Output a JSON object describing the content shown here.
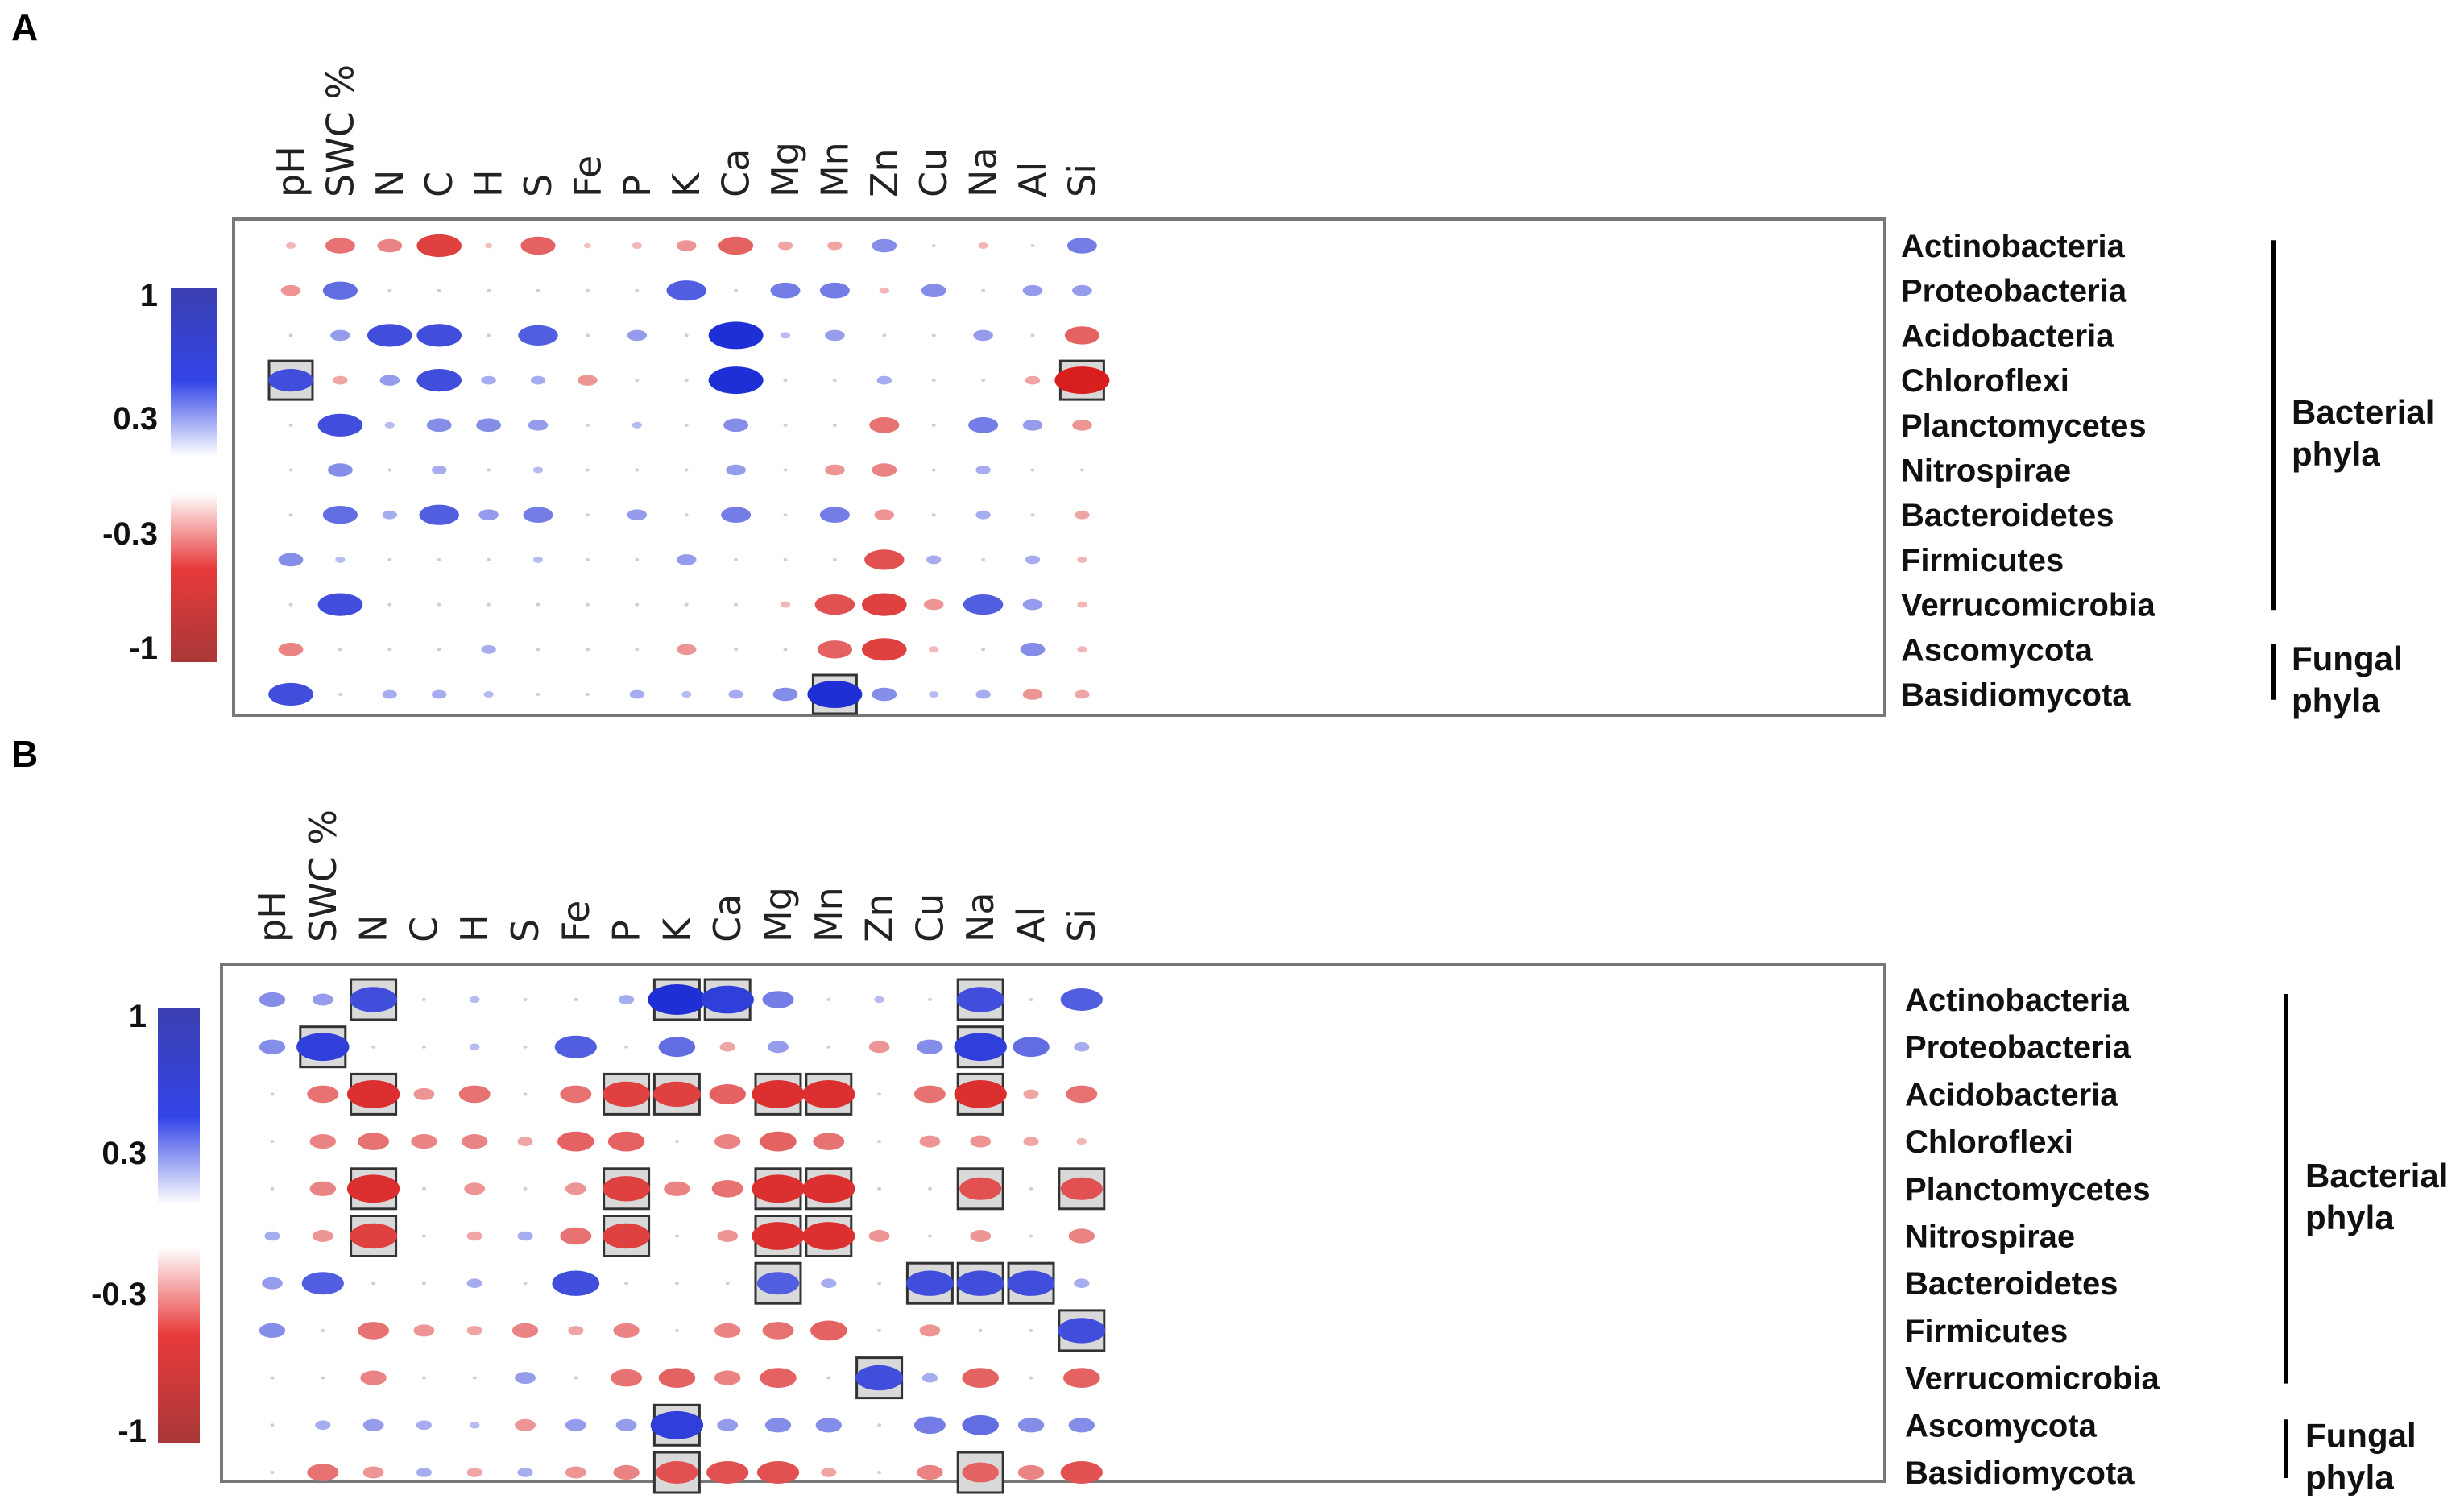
{
  "colors": {
    "positive": "#1f2fd6",
    "negative": "#d91e1e",
    "box_fill": "#d9d9d9",
    "frame": "#777777"
  },
  "chart_data": [
    {
      "type": "heatmap",
      "panel": "A",
      "columns": [
        "pH",
        "SWC %",
        "N",
        "C",
        "H",
        "S",
        "Fe",
        "P",
        "K",
        "Ca",
        "Mg",
        "Mn",
        "Zn",
        "Cu",
        "Na",
        "Al",
        "Si"
      ],
      "rows": [
        "Actinobacteria",
        "Proteobacteria",
        "Acidobacteria",
        "Chloroflexi",
        "Planctomycetes",
        "Nitrospirae",
        "Bacteroidetes",
        "Firmicutes",
        "Verrucomicrobia",
        "Ascomycota",
        "Basidiomycota"
      ],
      "groups": [
        {
          "label": "Bacterial phyla",
          "line1": "Bacterial",
          "line2": "phyla",
          "row_start": 0,
          "row_end": 8
        },
        {
          "label": "Fungal phyla",
          "line1": "Fungal",
          "line2": "phyla",
          "row_start": 9,
          "row_end": 10
        }
      ],
      "colorbar": {
        "ticks": [
          "1",
          "0.3",
          "-0.3",
          "-1"
        ],
        "range": [
          -1,
          1
        ]
      },
      "values": [
        [
          -0.1,
          -0.5,
          -0.4,
          -0.8,
          -0.05,
          -0.6,
          -0.05,
          -0.1,
          -0.3,
          -0.6,
          -0.2,
          -0.2,
          0.4,
          0,
          -0.1,
          0,
          0.5
        ],
        [
          -0.3,
          0.6,
          0,
          0,
          0,
          0,
          0,
          0,
          0.7,
          0,
          0.5,
          0.5,
          -0.1,
          0.4,
          0,
          0.3,
          0.3
        ],
        [
          0,
          0.3,
          0.8,
          0.8,
          0,
          0.7,
          0,
          0.3,
          0,
          1,
          0.1,
          0.3,
          0,
          0,
          0.3,
          0,
          -0.6
        ],
        [
          0.8,
          -0.2,
          0.3,
          0.8,
          0.2,
          0.2,
          -0.3,
          0,
          0,
          1,
          0,
          0,
          0.2,
          0,
          0,
          -0.2,
          -1
        ],
        [
          0,
          0.8,
          0.1,
          0.4,
          0.4,
          0.3,
          0,
          0.1,
          0,
          0.4,
          0,
          0,
          -0.5,
          0,
          0.5,
          0.3,
          -0.3
        ],
        [
          0,
          0.4,
          0,
          0.2,
          0,
          0.1,
          0,
          0,
          0,
          0.3,
          0,
          -0.3,
          -0.4,
          0,
          0.2,
          0,
          0
        ],
        [
          0,
          0.6,
          0.2,
          0.7,
          0.3,
          0.5,
          0,
          0.3,
          0,
          0.5,
          0,
          0.5,
          -0.3,
          0,
          0.2,
          0,
          -0.2
        ],
        [
          0.4,
          0.1,
          0,
          0,
          0,
          0.1,
          0,
          0,
          0.3,
          0,
          0,
          0,
          -0.7,
          0.2,
          0,
          0.2,
          -0.1
        ],
        [
          0,
          0.8,
          0,
          0,
          0,
          0,
          0,
          0,
          0,
          0,
          -0.1,
          -0.7,
          -0.8,
          -0.3,
          0.7,
          0.3,
          -0.1
        ],
        [
          -0.4,
          0,
          0,
          0,
          0.2,
          0,
          0,
          0,
          -0.3,
          0,
          0,
          -0.6,
          -0.8,
          -0.1,
          0,
          0.4,
          -0.1
        ],
        [
          0.8,
          0,
          0.2,
          0.2,
          0.1,
          0,
          0,
          0.2,
          0.1,
          0.2,
          0.4,
          1,
          0.4,
          0.1,
          0.2,
          -0.3,
          -0.2
        ]
      ],
      "highlighted": [
        [
          3,
          0
        ],
        [
          3,
          16
        ],
        [
          10,
          11
        ]
      ]
    },
    {
      "type": "heatmap",
      "panel": "B",
      "columns": [
        "pH",
        "SWC %",
        "N",
        "C",
        "H",
        "S",
        "Fe",
        "P",
        "K",
        "Ca",
        "Mg",
        "Mn",
        "Zn",
        "Cu",
        "Na",
        "Al",
        "Si"
      ],
      "rows": [
        "Actinobacteria",
        "Proteobacteria",
        "Acidobacteria",
        "Chloroflexi",
        "Planctomycetes",
        "Nitrospirae",
        "Bacteroidetes",
        "Firmicutes",
        "Verrucomicrobia",
        "Ascomycota",
        "Basidiomycota"
      ],
      "groups": [
        {
          "label": "Bacterial phyla",
          "line1": "Bacterial",
          "line2": "phyla",
          "row_start": 0,
          "row_end": 8
        },
        {
          "label": "Fungal phyla",
          "line1": "Fungal",
          "line2": "phyla",
          "row_start": 9,
          "row_end": 10
        }
      ],
      "colorbar": {
        "ticks": [
          "1",
          "0.3",
          "-0.3",
          "-1"
        ],
        "range": [
          -1,
          1
        ]
      },
      "values": [
        [
          0.4,
          0.3,
          0.8,
          0,
          0.1,
          0,
          0,
          0.2,
          1,
          0.9,
          0.5,
          0,
          0.1,
          0,
          0.8,
          0,
          0.7
        ],
        [
          0.4,
          0.9,
          0,
          0,
          0.1,
          0,
          0.7,
          0,
          0.6,
          -0.2,
          0.3,
          0,
          -0.3,
          0.4,
          0.9,
          0.6,
          0.2
        ],
        [
          0,
          -0.5,
          -0.9,
          -0.3,
          -0.5,
          0,
          -0.5,
          -0.8,
          -0.8,
          -0.6,
          -0.9,
          -0.9,
          0,
          -0.5,
          -0.9,
          -0.2,
          -0.5
        ],
        [
          0,
          -0.4,
          -0.5,
          -0.4,
          -0.4,
          -0.2,
          -0.6,
          -0.6,
          0,
          -0.4,
          -0.6,
          -0.5,
          0,
          -0.3,
          -0.3,
          -0.2,
          -0.1
        ],
        [
          0,
          -0.4,
          -0.9,
          0,
          -0.3,
          0,
          -0.3,
          -0.8,
          -0.4,
          -0.5,
          -0.9,
          -0.9,
          0,
          0,
          -0.7,
          0,
          -0.7
        ],
        [
          0.2,
          -0.3,
          -0.8,
          0,
          -0.2,
          0.2,
          -0.5,
          -0.8,
          0,
          -0.3,
          -0.9,
          -0.9,
          -0.3,
          0,
          -0.3,
          0,
          -0.4
        ],
        [
          0.3,
          0.7,
          0,
          0,
          0.2,
          0,
          0.8,
          0,
          0,
          0,
          0.7,
          0.2,
          0,
          0.8,
          0.8,
          0.8,
          0.2
        ],
        [
          0.4,
          0,
          -0.5,
          -0.3,
          -0.2,
          -0.4,
          -0.2,
          -0.4,
          0,
          -0.4,
          -0.5,
          -0.6,
          0,
          -0.3,
          0,
          0,
          0.8
        ],
        [
          0,
          0,
          -0.4,
          0,
          0,
          0.3,
          0,
          -0.5,
          -0.6,
          -0.4,
          -0.6,
          0,
          0.8,
          0.2,
          -0.6,
          0,
          -0.6
        ],
        [
          0,
          0.2,
          0.3,
          0.2,
          0.1,
          -0.3,
          0.3,
          0.3,
          0.9,
          0.3,
          0.4,
          0.4,
          0,
          0.5,
          0.6,
          0.4,
          0.4
        ],
        [
          0,
          -0.5,
          -0.3,
          0.2,
          -0.2,
          0.2,
          -0.3,
          -0.4,
          -0.7,
          -0.7,
          -0.7,
          -0.2,
          0,
          -0.4,
          -0.6,
          -0.4,
          -0.7
        ]
      ],
      "highlighted": [
        [
          0,
          2
        ],
        [
          0,
          8
        ],
        [
          0,
          9
        ],
        [
          0,
          14
        ],
        [
          1,
          1
        ],
        [
          1,
          14
        ],
        [
          2,
          2
        ],
        [
          2,
          7
        ],
        [
          2,
          8
        ],
        [
          2,
          10
        ],
        [
          2,
          11
        ],
        [
          2,
          14
        ],
        [
          4,
          2
        ],
        [
          4,
          7
        ],
        [
          4,
          10
        ],
        [
          4,
          11
        ],
        [
          4,
          14
        ],
        [
          4,
          16
        ],
        [
          5,
          2
        ],
        [
          5,
          7
        ],
        [
          5,
          10
        ],
        [
          5,
          11
        ],
        [
          6,
          10
        ],
        [
          6,
          13
        ],
        [
          6,
          14
        ],
        [
          6,
          15
        ],
        [
          7,
          16
        ],
        [
          8,
          12
        ],
        [
          9,
          8
        ],
        [
          10,
          8
        ],
        [
          10,
          14
        ]
      ]
    }
  ]
}
